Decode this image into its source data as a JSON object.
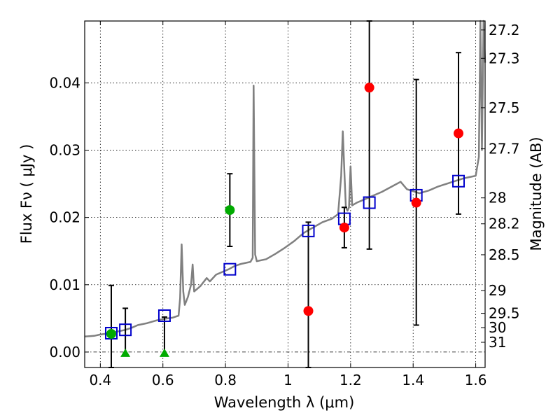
{
  "chart_data": {
    "type": "scatter",
    "xlabel": "Wavelength  λ (μm)",
    "ylabel": "Flux  Fν ( μJy )",
    "ylabel_right": "Magnitude (AB)",
    "xlim": [
      0.35,
      1.63
    ],
    "ylim": [
      -0.0023,
      0.0492
    ],
    "x_ticks": [
      0.4,
      0.6,
      0.8,
      1.0,
      1.2,
      1.4,
      1.6
    ],
    "x_tick_labels": [
      "0.4",
      "0.6",
      "0.8",
      "1",
      "1.2",
      "1.4",
      "1.6"
    ],
    "y_ticks": [
      0.0,
      0.01,
      0.02,
      0.03,
      0.04
    ],
    "y_tick_labels": [
      "0.00",
      "0.01",
      "0.02",
      "0.03",
      "0.04"
    ],
    "mag_ticks": [
      27.2,
      27.3,
      27.5,
      27.7,
      28,
      28.2,
      28.5,
      29,
      29.5,
      30,
      31
    ],
    "mag_tick_labels": [
      "27.2",
      "27.3",
      "27.5",
      "27.7",
      "28",
      "28.2",
      "28.5",
      "29",
      "29.5",
      "30",
      "31"
    ],
    "grid": true,
    "colors": {
      "template": "#808080",
      "model_box": "#0000cc",
      "red": "#ff0000",
      "green": "#00aa00",
      "errorbar": "#000000"
    },
    "series": [
      {
        "name": "template spectrum",
        "type": "line",
        "points": [
          [
            0.35,
            0.0023
          ],
          [
            0.38,
            0.0024
          ],
          [
            0.4,
            0.0026
          ],
          [
            0.43,
            0.0028
          ],
          [
            0.45,
            0.003
          ],
          [
            0.48,
            0.0033
          ],
          [
            0.5,
            0.0036
          ],
          [
            0.52,
            0.004
          ],
          [
            0.55,
            0.0043
          ],
          [
            0.58,
            0.0047
          ],
          [
            0.6,
            0.0049
          ],
          [
            0.63,
            0.0051
          ],
          [
            0.65,
            0.0054
          ],
          [
            0.655,
            0.008
          ],
          [
            0.66,
            0.016
          ],
          [
            0.665,
            0.009
          ],
          [
            0.67,
            0.007
          ],
          [
            0.68,
            0.0082
          ],
          [
            0.69,
            0.01
          ],
          [
            0.695,
            0.013
          ],
          [
            0.7,
            0.009
          ],
          [
            0.72,
            0.0098
          ],
          [
            0.74,
            0.011
          ],
          [
            0.75,
            0.0105
          ],
          [
            0.77,
            0.0115
          ],
          [
            0.79,
            0.0119
          ],
          [
            0.81,
            0.0123
          ],
          [
            0.83,
            0.0128
          ],
          [
            0.85,
            0.0131
          ],
          [
            0.88,
            0.0134
          ],
          [
            0.887,
            0.014
          ],
          [
            0.89,
            0.0396
          ],
          [
            0.895,
            0.0145
          ],
          [
            0.9,
            0.0135
          ],
          [
            0.93,
            0.0138
          ],
          [
            0.96,
            0.0146
          ],
          [
            0.99,
            0.0155
          ],
          [
            1.02,
            0.0165
          ],
          [
            1.05,
            0.0177
          ],
          [
            1.08,
            0.0185
          ],
          [
            1.11,
            0.0193
          ],
          [
            1.14,
            0.0198
          ],
          [
            1.16,
            0.0205
          ],
          [
            1.17,
            0.0262
          ],
          [
            1.175,
            0.0328
          ],
          [
            1.18,
            0.027
          ],
          [
            1.185,
            0.0215
          ],
          [
            1.19,
            0.021
          ],
          [
            1.195,
            0.0215
          ],
          [
            1.2,
            0.0276
          ],
          [
            1.205,
            0.0218
          ],
          [
            1.22,
            0.0222
          ],
          [
            1.26,
            0.023
          ],
          [
            1.3,
            0.0238
          ],
          [
            1.34,
            0.0248
          ],
          [
            1.36,
            0.0253
          ],
          [
            1.38,
            0.0242
          ],
          [
            1.42,
            0.0236
          ],
          [
            1.45,
            0.024
          ],
          [
            1.48,
            0.0246
          ],
          [
            1.52,
            0.0252
          ],
          [
            1.56,
            0.0258
          ],
          [
            1.6,
            0.0262
          ],
          [
            1.61,
            0.029
          ],
          [
            1.615,
            0.0492
          ],
          [
            1.62,
            0.03
          ],
          [
            1.625,
            0.0492
          ],
          [
            1.63,
            0.043
          ]
        ]
      },
      {
        "name": "model photometry",
        "type": "scatter",
        "marker": "open-square",
        "points": [
          [
            0.435,
            0.0028
          ],
          [
            0.48,
            0.0033
          ],
          [
            0.605,
            0.0054
          ],
          [
            0.814,
            0.0123
          ],
          [
            1.065,
            0.018
          ],
          [
            1.18,
            0.0198
          ],
          [
            1.26,
            0.0222
          ],
          [
            1.41,
            0.0233
          ],
          [
            1.545,
            0.0254
          ]
        ]
      },
      {
        "name": "red observations",
        "type": "scatter",
        "marker": "circle",
        "points": [
          {
            "x": 1.065,
            "y": 0.0061,
            "lo": -0.0023,
            "hi": 0.0193
          },
          {
            "x": 1.18,
            "y": 0.0185,
            "lo": 0.0155,
            "hi": 0.0215
          },
          {
            "x": 1.26,
            "y": 0.0393,
            "lo": 0.0153,
            "hi": 0.0492
          },
          {
            "x": 1.41,
            "y": 0.0222,
            "lo": 0.004,
            "hi": 0.0405
          },
          {
            "x": 1.545,
            "y": 0.0325,
            "lo": 0.0205,
            "hi": 0.0445
          }
        ]
      },
      {
        "name": "green observations",
        "type": "scatter",
        "marker": "circle",
        "points": [
          {
            "x": 0.435,
            "y": 0.0027,
            "lo": -0.0023,
            "hi": 0.0099
          },
          {
            "x": 0.814,
            "y": 0.0211,
            "lo": 0.0157,
            "hi": 0.0265
          }
        ]
      },
      {
        "name": "green upper limits",
        "type": "scatter",
        "marker": "triangle",
        "points": [
          {
            "x": 0.48,
            "y": -0.0002,
            "hi": 0.0065
          },
          {
            "x": 0.605,
            "y": -0.0002,
            "hi": 0.0052
          }
        ]
      }
    ]
  }
}
